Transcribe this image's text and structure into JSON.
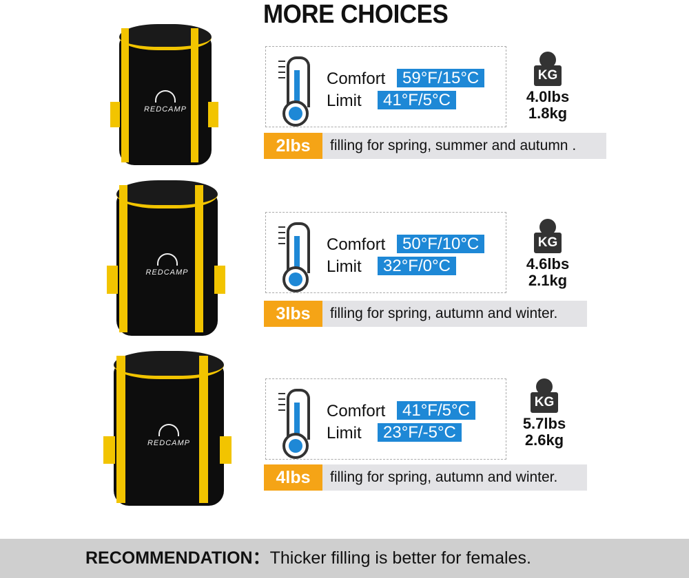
{
  "title": "MORE CHOICES",
  "brand": "REDCAMP",
  "options": [
    {
      "comfort_label": "Comfort",
      "comfort": "59°F/15°C",
      "limit_label": "Limit",
      "limit": "41°F/5°C",
      "weight_icon": "KG",
      "weight_lbs": "4.0lbs",
      "weight_kg": "1.8kg",
      "fill": "2lbs",
      "fill_text": "filling for spring, summer and autumn ."
    },
    {
      "comfort_label": "Comfort",
      "comfort": "50°F/10°C",
      "limit_label": "Limit",
      "limit": "32°F/0°C",
      "weight_icon": "KG",
      "weight_lbs": "4.6lbs",
      "weight_kg": "2.1kg",
      "fill": "3lbs",
      "fill_text": "filling for spring, autumn and winter."
    },
    {
      "comfort_label": "Comfort",
      "comfort": "41°F/5°C",
      "limit_label": "Limit",
      "limit": "23°F/-5°C",
      "weight_icon": "KG",
      "weight_lbs": "5.7lbs",
      "weight_kg": "2.6kg",
      "fill": "4lbs",
      "fill_text": "filling for spring, autumn and winter."
    }
  ],
  "recommendation": {
    "label": "RECOMMENDATION：",
    "text": "Thicker filling is better for females."
  },
  "colors": {
    "accent_blue": "#1e88d6",
    "orange": "#f5a416",
    "strap_yellow": "#f2c400"
  }
}
